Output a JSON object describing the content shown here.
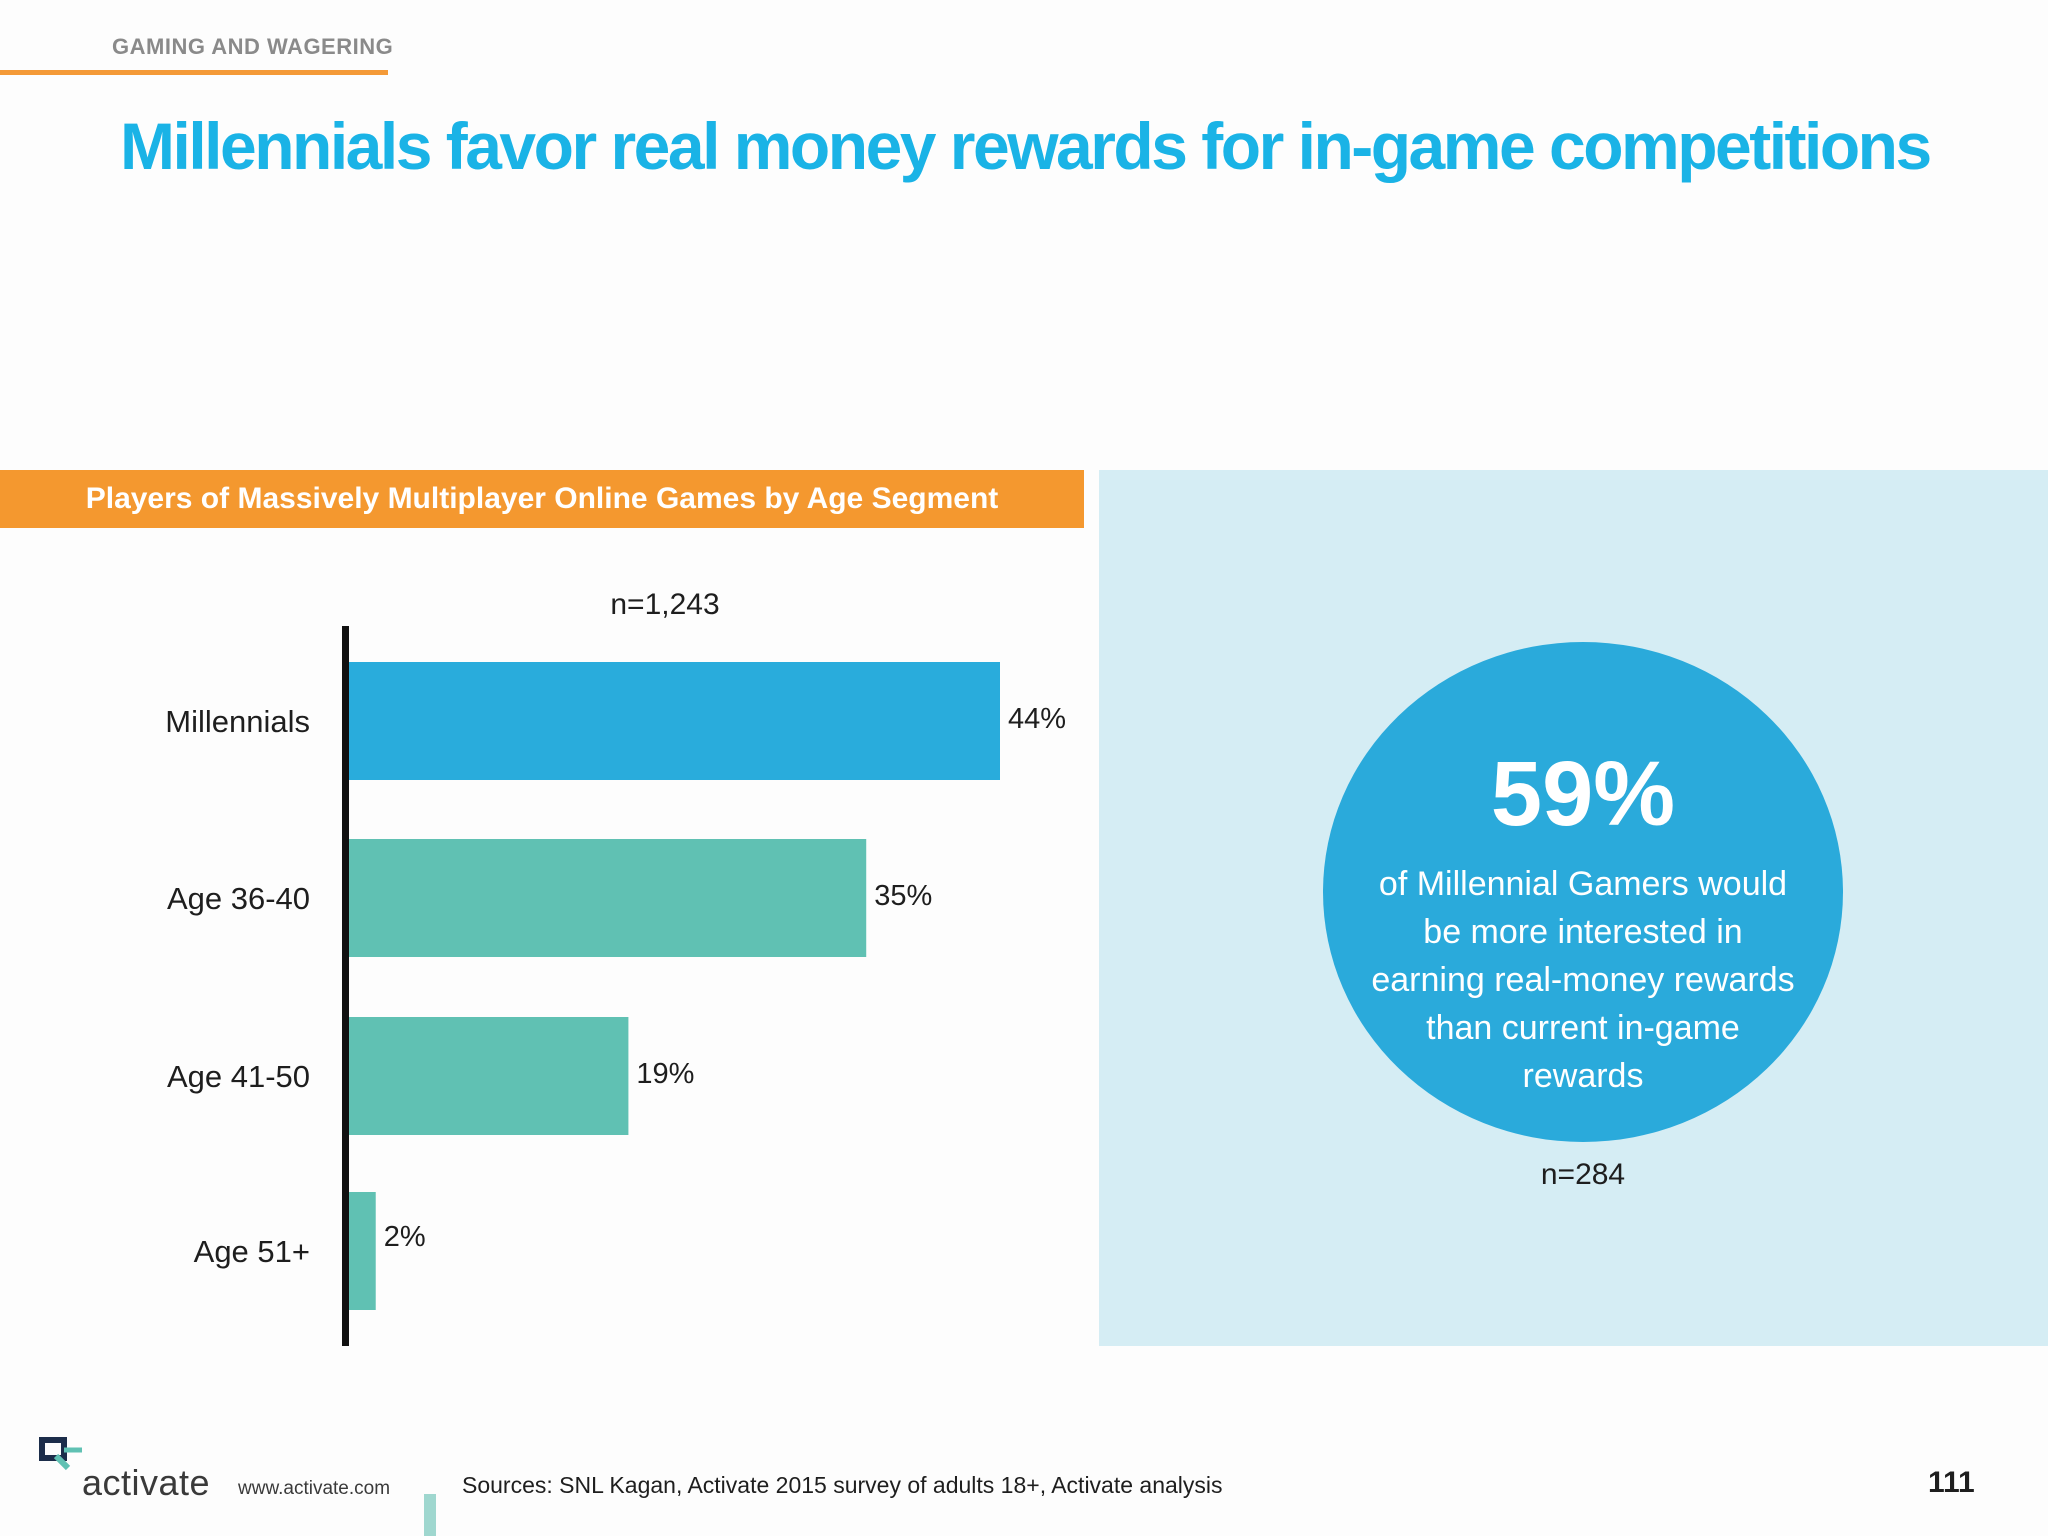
{
  "header": {
    "section": "GAMING AND WAGERING",
    "title": "Millennials favor real money rewards for in-game competitions"
  },
  "chart_data": {
    "type": "bar",
    "orientation": "horizontal",
    "title": "Players of Massively Multiplayer Online Games by Age Segment",
    "sample_size": "n=1,243",
    "categories": [
      "Millennials",
      "Age 36-40",
      "Age 41-50",
      "Age 51+"
    ],
    "values": [
      44,
      35,
      19,
      2
    ],
    "value_labels": [
      "44%",
      "35%",
      "19%",
      "2%"
    ],
    "unit": "%",
    "colors": [
      "#29acdc",
      "#60c1b3",
      "#60c1b3",
      "#60c1b3"
    ],
    "xlim": [
      0,
      44
    ],
    "grid": false,
    "legend": "none"
  },
  "callout": {
    "stat": "59%",
    "text": "of Millennial Gamers would be more interested in earning real-money rewards than current in-game rewards",
    "sample_size": "n=284"
  },
  "footer": {
    "logo_icon": "activate-logo-icon",
    "brand": "activate",
    "url": "www.activate.com",
    "sources": "Sources: SNL Kagan, Activate 2015 survey of adults 18+, Activate analysis",
    "page_number": "111"
  }
}
